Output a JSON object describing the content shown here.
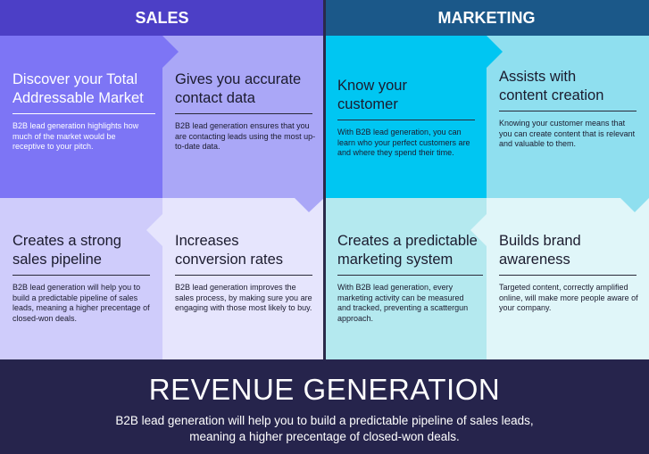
{
  "header": {
    "sales": "SALES",
    "marketing": "MARKETING"
  },
  "cells": [
    {
      "title": "Discover your Total Addressable Market",
      "text": "B2B lead generation highlights how much of the market would be receptive to your pitch."
    },
    {
      "title": "Gives you accurate contact data",
      "text": "B2B lead generation ensures that you are contacting leads using the most up-to-date data."
    },
    {
      "title": "Know your customer",
      "text": "With B2B lead generation, you can learn who your perfect customers are and where they spend their time."
    },
    {
      "title": "Assists with content creation",
      "text": "Knowing your customer means that you can create content that is relevant and valuable to them."
    },
    {
      "title": "Creates a strong sales pipeline",
      "text": "B2B lead generation will help you to build a predictable pipeline of sales leads, meaning a higher precentage of closed-won deals."
    },
    {
      "title": "Increases conversion rates",
      "text": "B2B lead generation improves the sales process, by making sure you are engaging with those most likely to buy."
    },
    {
      "title": "Creates a predictable marketing system",
      "text": "With B2B lead generation, every marketing activity can be measured and tracked, preventing a scattergun approach."
    },
    {
      "title": "Builds brand awareness",
      "text": "Targeted content, correctly amplified online, will make more people aware of your company."
    }
  ],
  "footer": {
    "title": "REVENUE GENERATION",
    "text": "B2B lead generation will help you to build a predictable pipeline of sales leads, meaning a higher precentage of closed-won deals."
  }
}
